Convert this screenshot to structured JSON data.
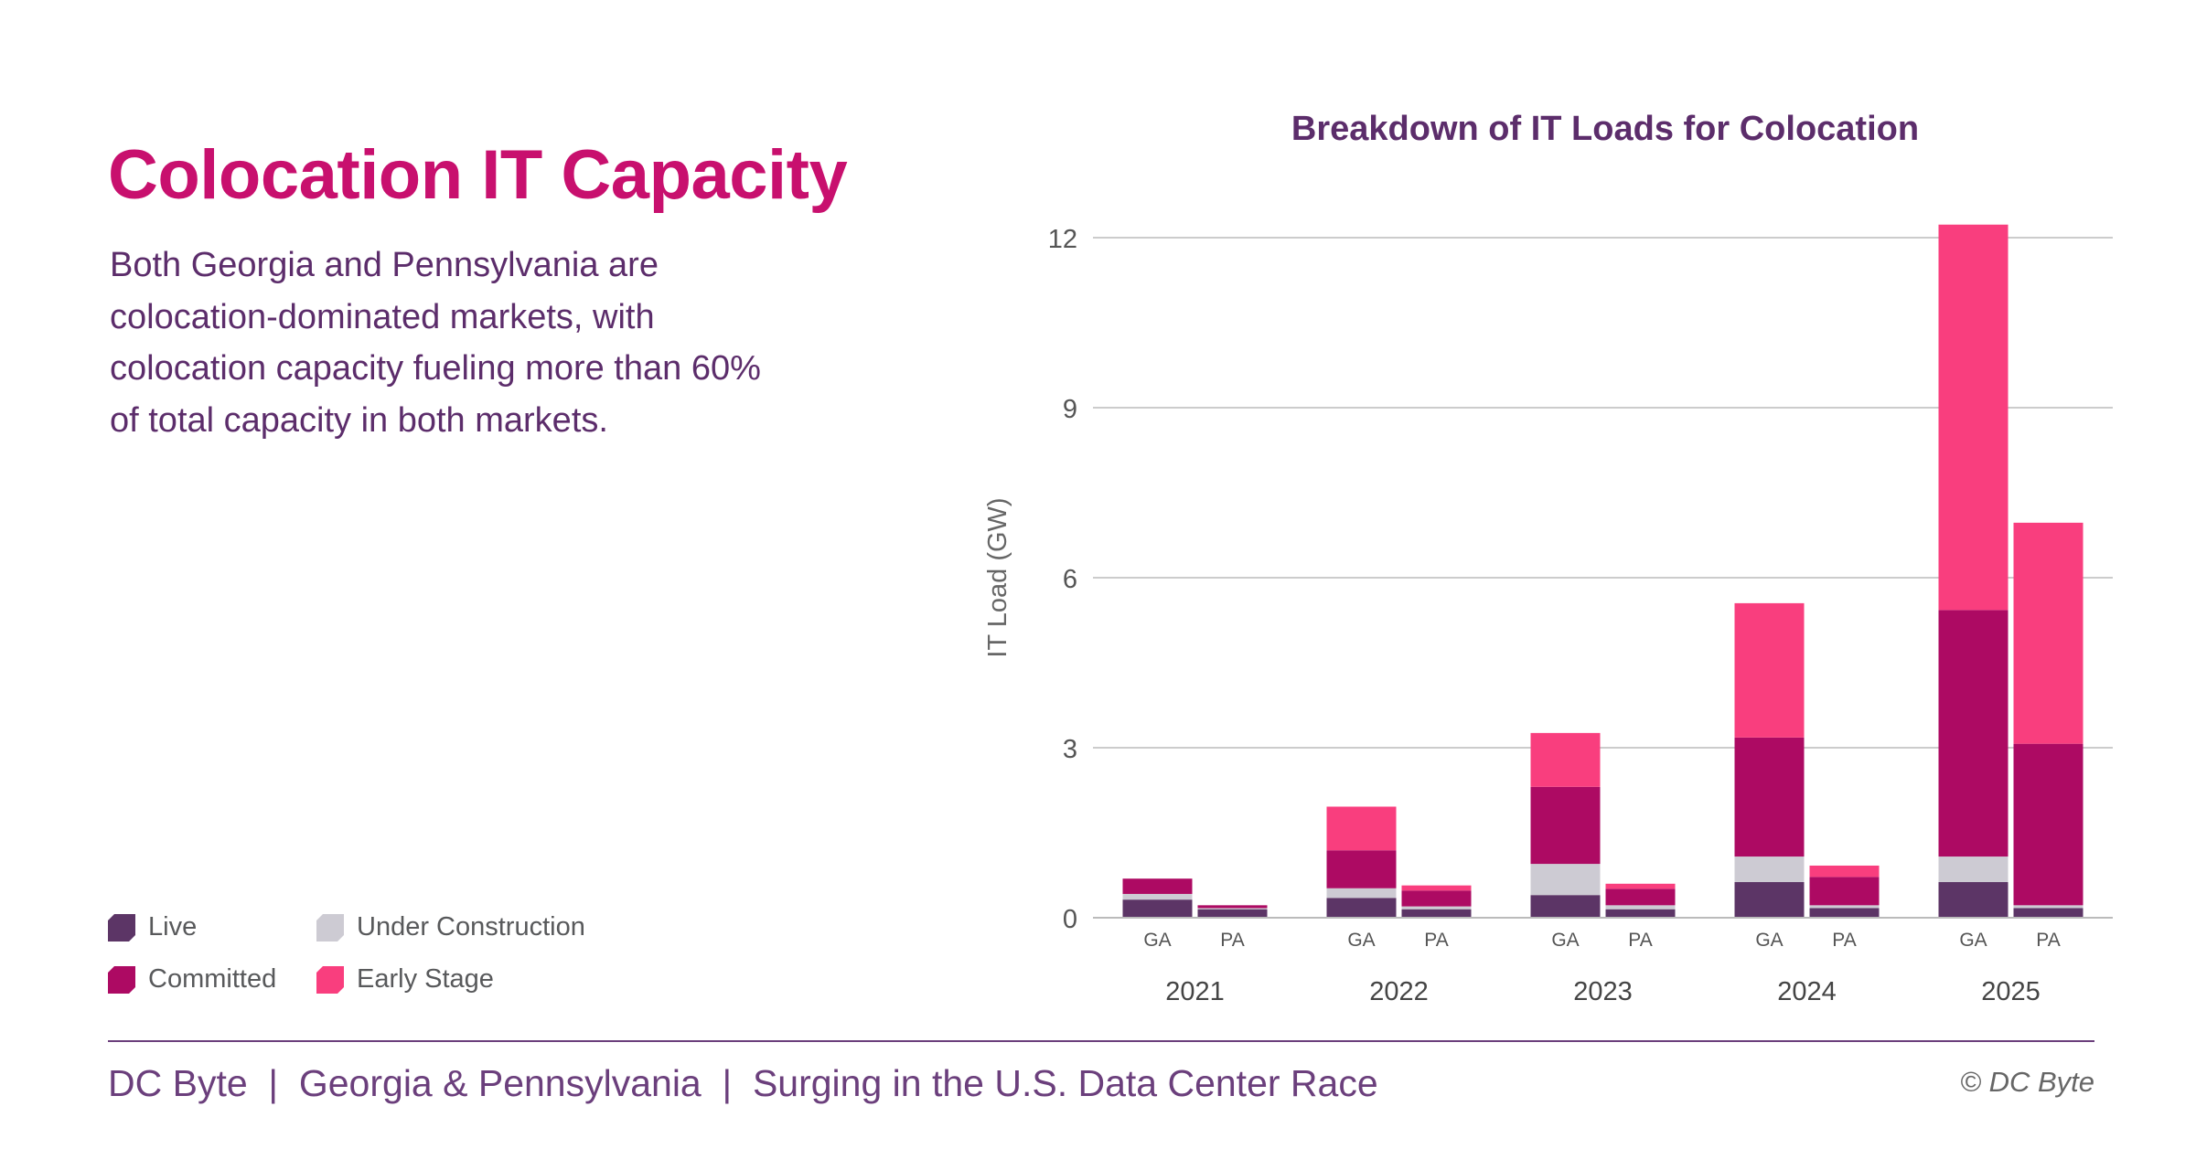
{
  "page": {
    "title": "Colocation IT Capacity",
    "description": "Both Georgia and Pennsylvania are colocation-dominated markets, with colocation capacity fueling more than 60% of total capacity in both markets.",
    "footer": "DC Byte  |  Georgia & Pennsylvania  |  Surging in the U.S. Data Center Race",
    "copyright": "© DC Byte"
  },
  "legend": [
    {
      "label": "Live",
      "color": "#5c3566"
    },
    {
      "label": "Under Construction",
      "color": "#cdcbd3"
    },
    {
      "label": "Committed",
      "color": "#ad0a63"
    },
    {
      "label": "Early Stage",
      "color": "#f93e7e"
    }
  ],
  "chart_data": {
    "type": "bar",
    "stacked": true,
    "title": "Breakdown of IT Loads for Colocation",
    "xlabel": "",
    "ylabel": "IT Load (GW)",
    "ylim": [
      0,
      12
    ],
    "yticks": [
      0,
      3,
      6,
      9,
      12
    ],
    "grid": true,
    "legend_position": "bottom-left",
    "groups": [
      "2021",
      "2022",
      "2023",
      "2024",
      "2025"
    ],
    "markets": [
      "GA",
      "PA"
    ],
    "categories": [
      "2021 GA",
      "2021 PA",
      "2022 GA",
      "2022 PA",
      "2023 GA",
      "2023 PA",
      "2024 GA",
      "2024 PA",
      "2025 GA",
      "2025 PA"
    ],
    "series": [
      {
        "name": "Live",
        "color": "#5c3566",
        "values": [
          0.32,
          0.15,
          0.35,
          0.15,
          0.4,
          0.15,
          0.63,
          0.17,
          0.63,
          0.17
        ]
      },
      {
        "name": "Under Construction",
        "color": "#cdcbd3",
        "values": [
          0.1,
          0.02,
          0.17,
          0.05,
          0.55,
          0.07,
          0.45,
          0.05,
          0.45,
          0.05
        ]
      },
      {
        "name": "Committed",
        "color": "#ad0a63",
        "values": [
          0.27,
          0.05,
          0.67,
          0.28,
          1.36,
          0.29,
          2.1,
          0.5,
          4.35,
          2.85
        ]
      },
      {
        "name": "Early Stage",
        "color": "#f93e7e",
        "values": [
          0.0,
          0.0,
          0.77,
          0.09,
          0.95,
          0.09,
          2.37,
          0.2,
          6.8,
          3.9
        ]
      }
    ]
  }
}
